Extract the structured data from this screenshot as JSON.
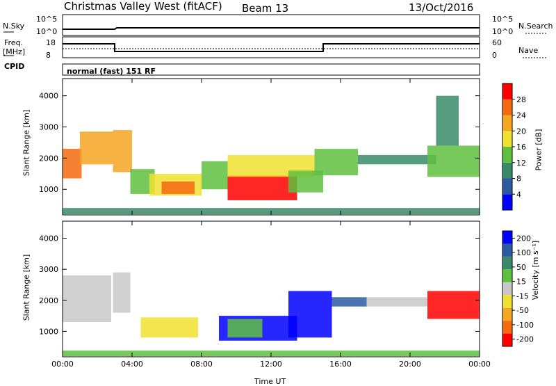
{
  "header": {
    "title": "Christmas Valley West (fitACF)",
    "beam": "Beam 13",
    "date": "13/Oct/2016"
  },
  "strip_nsky": {
    "left_label": "N.Sky",
    "right_label": "N.Search",
    "left_top_tick": "10^5",
    "left_bottom_tick": "10^0",
    "right_top_tick": "10^5",
    "right_bottom_tick": "10^0"
  },
  "strip_freq": {
    "left_label_1": "Freq.",
    "left_label_2": "[MHz]",
    "right_label": "Nave",
    "left_top_tick": "18",
    "left_bottom_tick": "8",
    "right_top_tick": "60",
    "right_bottom_tick": "0"
  },
  "cpid": {
    "label": "CPID",
    "mode": "normal (fast) 151 RF"
  },
  "chart_data": [
    {
      "type": "heatmap",
      "title": "",
      "xlabel": "Time UT",
      "ylabel": "Slant Range [km]",
      "x_ticks": [
        "00:00",
        "04:00",
        "08:00",
        "12:00",
        "16:00",
        "20:00",
        "00:00"
      ],
      "x_range_hours": [
        0,
        24
      ],
      "y_ticks": [
        "1000",
        "2000",
        "3000",
        "4000"
      ],
      "y_range_km": [
        180,
        4550
      ],
      "colorbar": {
        "label": "Power [dB]",
        "ticks": [
          "4",
          "8",
          "12",
          "16",
          "20",
          "24",
          "28"
        ],
        "range": [
          0,
          30
        ],
        "colors": [
          "#0000ff",
          "#2c5aa0",
          "#3a8a6a",
          "#5fbf3f",
          "#f0e030",
          "#f5a623",
          "#f56a10",
          "#ff0000"
        ]
      },
      "regions": [
        {
          "t0": 0.0,
          "t1": 1.1,
          "r0": 1350,
          "r1": 2300,
          "value": 26
        },
        {
          "t0": 1.0,
          "t1": 2.9,
          "r0": 1800,
          "r1": 2850,
          "value": 20
        },
        {
          "t0": 2.9,
          "t1": 4.0,
          "r0": 1550,
          "r1": 2900,
          "value": 22
        },
        {
          "t0": 3.9,
          "t1": 5.3,
          "r0": 850,
          "r1": 1650,
          "value": 14
        },
        {
          "t0": 5.0,
          "t1": 8.0,
          "r0": 800,
          "r1": 1500,
          "value": 18
        },
        {
          "t0": 5.7,
          "t1": 7.6,
          "r0": 850,
          "r1": 1250,
          "value": 26
        },
        {
          "t0": 8.0,
          "t1": 9.5,
          "r0": 1000,
          "r1": 1900,
          "value": 14
        },
        {
          "t0": 9.5,
          "t1": 13.5,
          "r0": 650,
          "r1": 1450,
          "value": 29
        },
        {
          "t0": 9.5,
          "t1": 14.5,
          "r0": 1400,
          "r1": 2100,
          "value": 15
        },
        {
          "t0": 13.0,
          "t1": 15.0,
          "r0": 900,
          "r1": 1600,
          "value": 14
        },
        {
          "t0": 14.5,
          "t1": 17.0,
          "r0": 1450,
          "r1": 2300,
          "value": 12
        },
        {
          "t0": 17.0,
          "t1": 21.5,
          "r0": 1800,
          "r1": 2100,
          "value": 10
        },
        {
          "t0": 21.0,
          "t1": 24.0,
          "r0": 1400,
          "r1": 2400,
          "value": 14
        },
        {
          "t0": 21.5,
          "t1": 22.8,
          "r0": 2400,
          "r1": 4000,
          "value": 11
        },
        {
          "t0": 0.0,
          "t1": 24.0,
          "r0": 200,
          "r1": 400,
          "value": 8
        }
      ]
    },
    {
      "type": "heatmap",
      "title": "",
      "xlabel": "Time UT",
      "ylabel": "Slant Range [km]",
      "x_ticks": [
        "00:00",
        "04:00",
        "08:00",
        "12:00",
        "16:00",
        "20:00",
        "00:00"
      ],
      "x_range_hours": [
        0,
        24
      ],
      "y_ticks": [
        "1000",
        "2000",
        "3000",
        "4000"
      ],
      "y_range_km": [
        180,
        4550
      ],
      "colorbar": {
        "label": "Velocity [m s⁻¹]",
        "ticks": [
          "200",
          "100",
          "50",
          "15",
          "-15",
          "-50",
          "-100",
          "-200"
        ],
        "range": [
          -250,
          250
        ],
        "colors": [
          "#ff0000",
          "#f56a10",
          "#f5a623",
          "#f0e030",
          "#c8c8c8",
          "#5fbf3f",
          "#3a8a6a",
          "#2c5aa0",
          "#0000ff"
        ]
      },
      "regions": [
        {
          "t0": 0.0,
          "t1": 2.8,
          "r0": 1300,
          "r1": 2800,
          "value": 0
        },
        {
          "t0": 2.9,
          "t1": 3.9,
          "r0": 1600,
          "r1": 2900,
          "value": 0
        },
        {
          "t0": 4.5,
          "t1": 7.8,
          "r0": 800,
          "r1": 1450,
          "value": -80
        },
        {
          "t0": 9.0,
          "t1": 13.5,
          "r0": 700,
          "r1": 1500,
          "value": 220
        },
        {
          "t0": 9.5,
          "t1": 11.5,
          "r0": 800,
          "r1": 1400,
          "value": 60
        },
        {
          "t0": 13.0,
          "t1": 15.5,
          "r0": 800,
          "r1": 2300,
          "value": 210
        },
        {
          "t0": 15.5,
          "t1": 17.5,
          "r0": 1800,
          "r1": 2100,
          "value": 180
        },
        {
          "t0": 17.5,
          "t1": 21.0,
          "r0": 1800,
          "r1": 2100,
          "value": 0
        },
        {
          "t0": 21.0,
          "t1": 24.0,
          "r0": 1400,
          "r1": 2300,
          "value": -200
        },
        {
          "t0": 0.0,
          "t1": 24.0,
          "r0": 200,
          "r1": 380,
          "value": 30
        }
      ]
    }
  ]
}
